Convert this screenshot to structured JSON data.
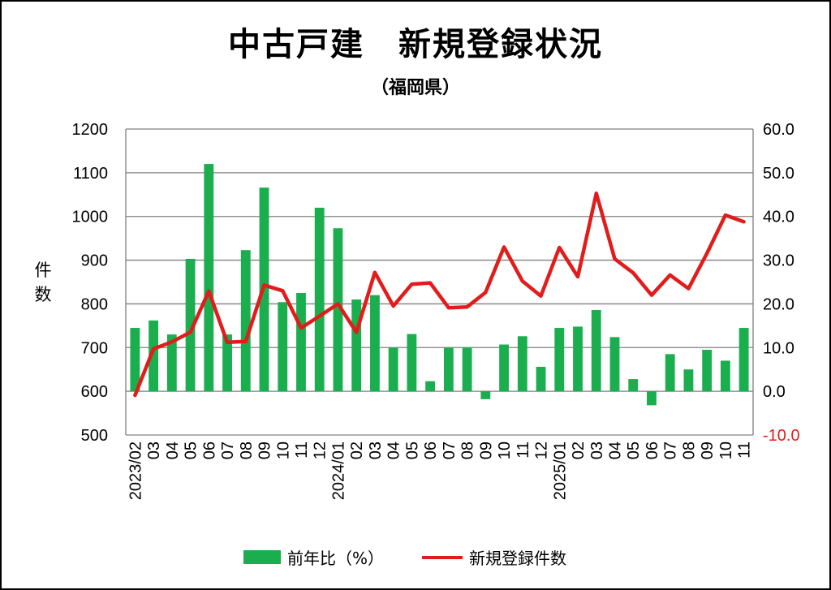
{
  "title": "中古戸建　新規登録状況",
  "subtitle": "（福岡県）",
  "ylabel_left": [
    "件",
    "数"
  ],
  "legend": {
    "bar_label": "前年比（%）",
    "line_label": "新規登録件数"
  },
  "colors": {
    "bar": "#1aae4f",
    "line": "#e21b1b",
    "right_axis_negative": "#e21b1b",
    "grid": "#808080"
  },
  "chart_data": {
    "type": "bar+line",
    "categories": [
      "2023/02",
      "03",
      "04",
      "05",
      "06",
      "07",
      "08",
      "09",
      "10",
      "11",
      "12",
      "2024/01",
      "02",
      "03",
      "04",
      "05",
      "06",
      "07",
      "08",
      "09",
      "10",
      "11",
      "12",
      "2025/01",
      "02",
      "03",
      "04",
      "05",
      "06",
      "07",
      "08",
      "09",
      "10",
      "11"
    ],
    "left_axis": {
      "min": 500,
      "max": 1200,
      "step": 100,
      "ticks": [
        "500",
        "600",
        "700",
        "800",
        "900",
        "1000",
        "1100",
        "1200"
      ]
    },
    "right_axis": {
      "min": -10,
      "max": 60,
      "step": 10,
      "ticks": [
        "-10.0",
        "0.0",
        "10.0",
        "20.0",
        "30.0",
        "40.0",
        "50.0",
        "60.0"
      ]
    },
    "grid": true,
    "legend_position": "bottom",
    "series": [
      {
        "name": "前年比（%）",
        "type": "bar",
        "axis": "right",
        "values": [
          14.5,
          16.2,
          13.0,
          30.3,
          52.0,
          13.0,
          32.3,
          46.6,
          20.4,
          22.5,
          42.0,
          37.3,
          21.0,
          22.0,
          10.0,
          13.1,
          2.3,
          10.0,
          10.0,
          -1.8,
          10.7,
          12.6,
          5.6,
          14.5,
          14.8,
          18.6,
          12.4,
          2.8,
          -3.2,
          8.5,
          5.0,
          9.5,
          7.0,
          14.5
        ]
      },
      {
        "name": "新規登録件数",
        "type": "line",
        "axis": "left",
        "values": [
          591,
          697,
          713,
          735,
          829,
          712,
          714,
          843,
          830,
          745,
          772,
          800,
          735,
          872,
          795,
          845,
          848,
          791,
          793,
          826,
          930,
          852,
          818,
          929,
          862,
          1053,
          903,
          871,
          820,
          866,
          835,
          916,
          1003,
          988
        ]
      }
    ]
  }
}
